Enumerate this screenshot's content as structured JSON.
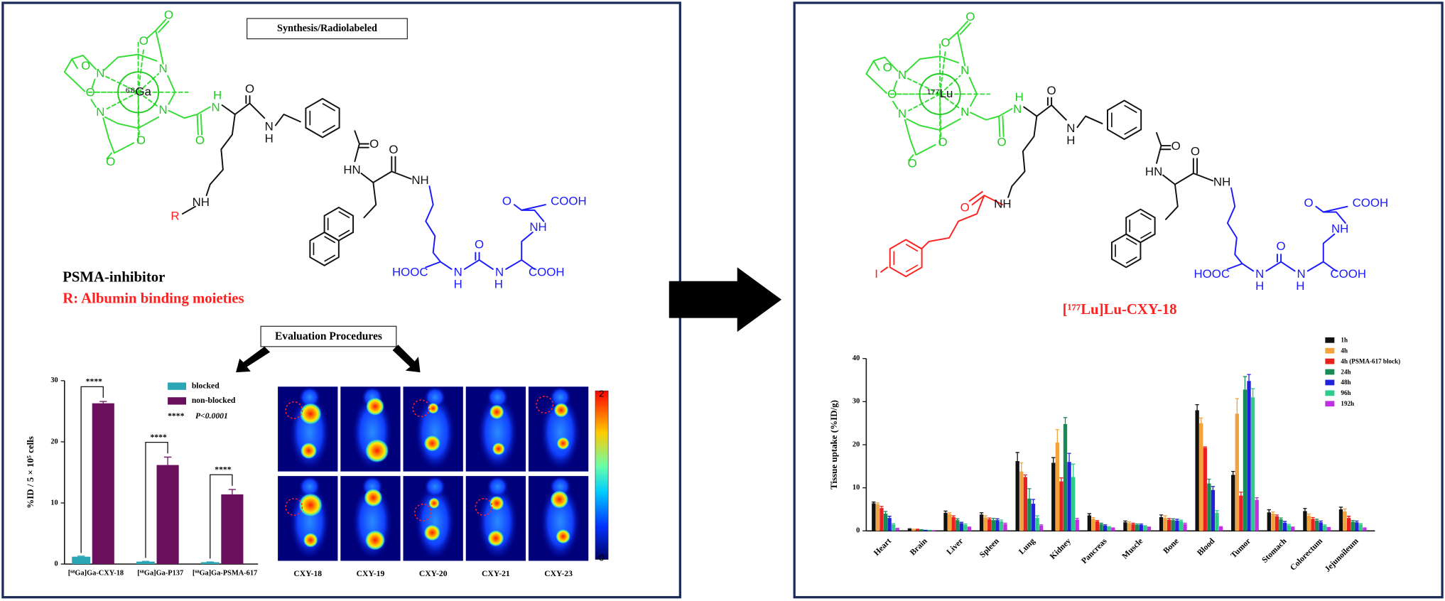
{
  "left_panel": {
    "box_title": "Synthesis/Radiolabeled",
    "metal_label": "⁶⁸Ga",
    "structure_labels": [
      "O",
      "O",
      "O",
      "O",
      "N",
      "N",
      "N",
      "N",
      "O",
      "O",
      "H",
      "N",
      "O",
      "O",
      "N",
      "H",
      "O",
      "HN",
      "O",
      "NH",
      "NH",
      "O",
      "COOH",
      "NH",
      "O",
      "HOOC",
      "N",
      "H",
      "N",
      "H",
      "COOH",
      "R"
    ],
    "compound_name": "PSMA-inhibitor",
    "r_group": "R: Albumin binding moieties",
    "evaluation_box": "Evaluation Procedures",
    "chart": {
      "type": "bar",
      "ylabel": "%ID / 5 × 10⁵ cells",
      "ylim": [
        0,
        30
      ],
      "yticks": [
        0,
        10,
        20,
        30
      ],
      "categories": [
        "[⁶⁸Ga]Ga-CXY-18",
        "[⁶⁸Ga]Ga-P137",
        "[⁶⁸Ga]Ga-PSMA-617"
      ],
      "series": [
        {
          "name": "blocked",
          "color": "#2aa6b5",
          "values": [
            1.2,
            0.4,
            0.3
          ],
          "errors": [
            0.1,
            0.05,
            0.05
          ]
        },
        {
          "name": "non-blocked",
          "color": "#6a0f5c",
          "values": [
            26.3,
            16.2,
            11.4
          ],
          "errors": [
            0.3,
            1.3,
            0.8
          ]
        }
      ],
      "significance_marker": "****",
      "significance_note": "P<0.0001"
    },
    "pet": {
      "columns": [
        "CXY-18",
        "CXY-19",
        "CXY-20",
        "CXY-21",
        "CXY-23"
      ],
      "colorbar_labels": [
        "2",
        "0"
      ]
    }
  },
  "right_panel": {
    "metal_label": "¹⁷⁷Lu",
    "structure_labels": [
      "O",
      "O",
      "O",
      "O",
      "N",
      "N",
      "N",
      "N",
      "O",
      "O",
      "H",
      "N",
      "O",
      "O",
      "N",
      "H",
      "O",
      "HN",
      "O",
      "NH",
      "NH",
      "O",
      "COOH",
      "NH",
      "O",
      "HOOC",
      "N",
      "H",
      "N",
      "H",
      "COOH",
      "O",
      "I"
    ],
    "compound_title": "[¹⁷⁷Lu]Lu-CXY-18",
    "chart": {
      "type": "bar",
      "ylabel": "Tissue uptake (%ID/g)",
      "ylim": [
        0,
        40
      ],
      "yticks": [
        0,
        10,
        20,
        30,
        40
      ],
      "categories": [
        "Heart",
        "Brain",
        "Liver",
        "Spleen",
        "Lung",
        "Kidney",
        "Pancreas",
        "Muscle",
        "Bone",
        "Blood",
        "Tumor",
        "Stomach",
        "Colorectum",
        "Jejunoileum"
      ],
      "series": [
        {
          "name": "1h",
          "color": "#111111",
          "values": [
            6.4,
            0.4,
            4.2,
            3.8,
            16.2,
            15.8,
            3.6,
            2.0,
            3.2,
            28.0,
            13.0,
            4.3,
            4.6,
            5.0
          ],
          "errors": [
            0.3,
            0.1,
            0.4,
            0.4,
            2.0,
            1.2,
            0.4,
            0.3,
            0.5,
            1.3,
            0.8,
            0.6,
            0.6,
            0.5
          ]
        },
        {
          "name": "4h",
          "color": "#f4a23c",
          "values": [
            6.2,
            0.3,
            3.9,
            3.1,
            13.8,
            20.5,
            2.8,
            1.8,
            3.0,
            25.0,
            27.2,
            4.0,
            3.5,
            4.5
          ],
          "errors": [
            0.3,
            0.1,
            0.3,
            0.4,
            2.0,
            3.0,
            0.3,
            0.3,
            0.5,
            1.2,
            3.5,
            0.4,
            0.4,
            0.6
          ]
        },
        {
          "name": "4h (PSMA-617 block)",
          "color": "#e8201e",
          "values": [
            5.3,
            0.3,
            3.2,
            2.7,
            12.5,
            11.5,
            2.2,
            1.6,
            2.6,
            19.3,
            8.2,
            3.4,
            2.8,
            3.0
          ],
          "errors": [
            0.4,
            0.1,
            0.3,
            0.3,
            0.5,
            0.8,
            0.2,
            0.2,
            0.3,
            0.2,
            0.8,
            0.3,
            0.3,
            0.4
          ]
        },
        {
          "name": "24h",
          "color": "#178a55",
          "values": [
            4.0,
            0.2,
            2.5,
            2.5,
            7.5,
            24.8,
            1.6,
            1.4,
            2.5,
            11.0,
            32.8,
            2.7,
            2.4,
            2.1
          ],
          "errors": [
            0.5,
            0.1,
            0.3,
            0.4,
            2.3,
            1.5,
            0.2,
            0.2,
            0.3,
            1.0,
            3.0,
            0.3,
            0.3,
            0.3
          ]
        },
        {
          "name": "48h",
          "color": "#2222dd",
          "values": [
            3.0,
            0.1,
            1.8,
            2.5,
            6.3,
            16.0,
            1.2,
            1.4,
            2.4,
            9.5,
            34.8,
            1.9,
            2.0,
            2.0
          ],
          "errors": [
            0.4,
            0.05,
            0.2,
            0.3,
            1.0,
            2.0,
            0.2,
            0.2,
            0.3,
            0.8,
            1.5,
            0.3,
            0.3,
            0.3
          ]
        },
        {
          "name": "96h",
          "color": "#2ecc8a",
          "values": [
            1.5,
            0.1,
            1.4,
            2.2,
            3.0,
            12.5,
            0.9,
            1.1,
            2.3,
            4.2,
            31.0,
            1.3,
            1.2,
            1.5
          ],
          "errors": [
            0.2,
            0.05,
            0.2,
            0.3,
            0.5,
            3.0,
            0.1,
            0.1,
            0.2,
            0.5,
            2.0,
            0.2,
            0.2,
            0.2
          ]
        },
        {
          "name": "192h",
          "color": "#c030e0",
          "values": [
            0.5,
            0.05,
            0.8,
            1.6,
            1.2,
            2.6,
            0.6,
            0.8,
            1.6,
            0.9,
            7.2,
            0.8,
            0.7,
            0.6
          ],
          "errors": [
            0.1,
            0.02,
            0.1,
            0.2,
            0.2,
            0.3,
            0.1,
            0.1,
            0.2,
            0.1,
            0.5,
            0.1,
            0.1,
            0.1
          ]
        }
      ]
    }
  }
}
